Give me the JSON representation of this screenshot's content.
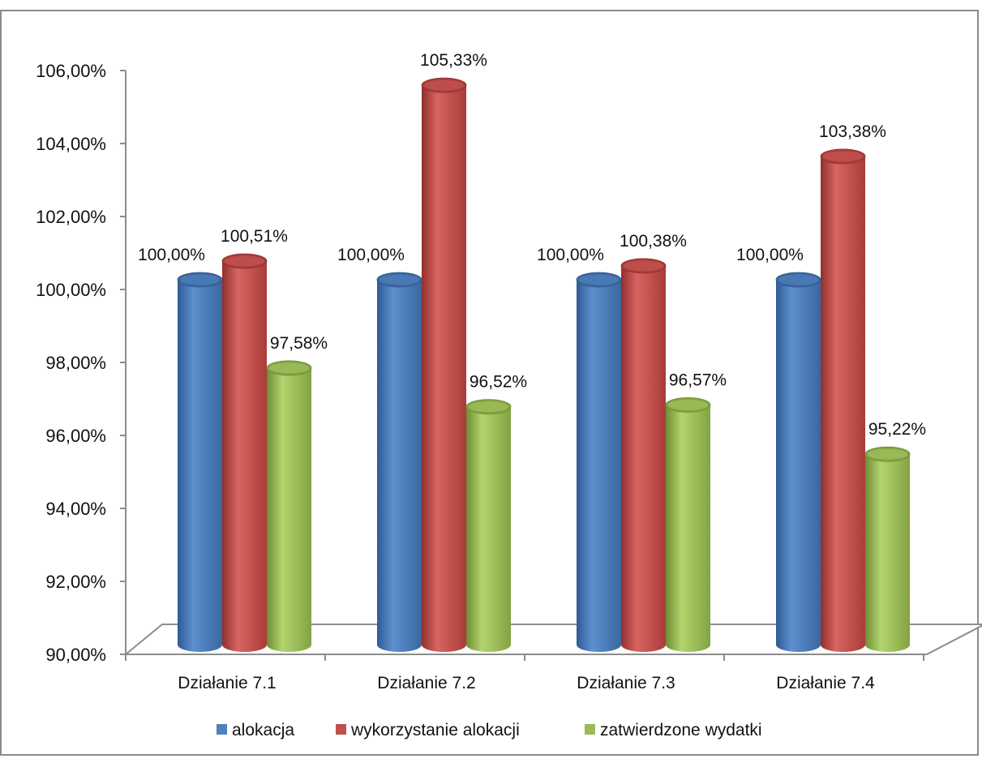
{
  "chart_data": {
    "type": "bar",
    "categories": [
      "Działanie 7.1",
      "Działanie 7.2",
      "Działanie 7.3",
      "Działanie 7.4"
    ],
    "series": [
      {
        "name": "alokacja",
        "color": "#4f81bd",
        "values": [
          100.0,
          100.0,
          100.0,
          100.0
        ],
        "labels": [
          "100,00%",
          "100,00%",
          "100,00%",
          "100,00%"
        ]
      },
      {
        "name": "wykorzystanie alokacji",
        "color": "#c0504d",
        "values": [
          100.51,
          105.33,
          100.38,
          103.38
        ],
        "labels": [
          "100,51%",
          "105,33%",
          "100,38%",
          "103,38%"
        ]
      },
      {
        "name": "zatwierdzone wydatki",
        "color": "#9bbb59",
        "values": [
          97.58,
          96.52,
          96.57,
          95.22
        ],
        "labels": [
          "97,58%",
          "96,52%",
          "96,57%",
          "95,22%"
        ]
      }
    ],
    "ylim": [
      90,
      106
    ],
    "yticks": [
      90,
      92,
      94,
      96,
      98,
      100,
      102,
      104,
      106
    ],
    "ytick_labels": [
      "90,00%",
      "92,00%",
      "94,00%",
      "96,00%",
      "98,00%",
      "100,00%",
      "102,00%",
      "104,00%",
      "106,00%"
    ],
    "legend_position": "bottom",
    "grid": false,
    "style": "3d-cylinder"
  }
}
